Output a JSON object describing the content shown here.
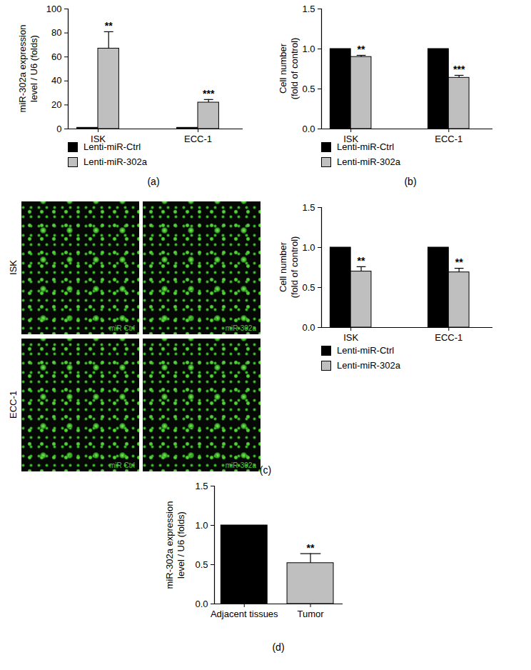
{
  "chart_data": [
    {
      "type": "bar",
      "title": "(a)",
      "y_label": [
        "miR-302a expression",
        "level / U6 (folds)"
      ],
      "categories": [
        "ISK",
        "ECC-1"
      ],
      "series": [
        {
          "name": "Lenti-miR-Ctrl",
          "color": "#000000",
          "values": [
            1,
            1
          ]
        },
        {
          "name": "Lenti-miR-302a",
          "color": "#bfbfbf",
          "values": [
            67,
            22
          ],
          "errors": [
            14,
            2.5
          ],
          "annotations": [
            "**",
            "***"
          ]
        }
      ],
      "ylim": [
        0,
        100
      ],
      "yticks": [
        0,
        20,
        40,
        60,
        80,
        100
      ],
      "legend": "bottom"
    },
    {
      "type": "bar",
      "title": "(b)",
      "y_label": [
        "Cell number",
        "(fold of control)"
      ],
      "categories": [
        "ISK",
        "ECC-1"
      ],
      "series": [
        {
          "name": "Lenti-miR-Ctrl",
          "color": "#000000",
          "values": [
            1,
            1
          ]
        },
        {
          "name": "Lenti-miR-302a",
          "color": "#bfbfbf",
          "values": [
            0.9,
            0.64
          ],
          "errors": [
            0.02,
            0.03
          ],
          "annotations": [
            "**",
            "***"
          ]
        }
      ],
      "ylim": [
        0,
        1.5
      ],
      "yticks": [
        {
          "value": 0,
          "label": "0.0"
        },
        {
          "value": 0.5,
          "label": "0.5"
        },
        {
          "value": 1,
          "label": "1.0"
        },
        {
          "value": 1.5,
          "label": "1.5"
        }
      ],
      "legend": "bottom"
    },
    {
      "type": "bar",
      "title": "(c)",
      "y_label": [
        "Cell number",
        "(fold of control)"
      ],
      "categories": [
        "ISK",
        "ECC-1"
      ],
      "series": [
        {
          "name": "Lenti-miR-Ctrl",
          "color": "#000000",
          "values": [
            1,
            1
          ]
        },
        {
          "name": "Lenti-miR-302a",
          "color": "#bfbfbf",
          "values": [
            0.7,
            0.69
          ],
          "errors": [
            0.06,
            0.05
          ],
          "annotations": [
            "**",
            "**"
          ]
        }
      ],
      "ylim": [
        0,
        1.5
      ],
      "yticks": [
        {
          "value": 0,
          "label": "0.0"
        },
        {
          "value": 0.5,
          "label": "0.5"
        },
        {
          "value": 1,
          "label": "1.0"
        },
        {
          "value": 1.5,
          "label": "1.5"
        }
      ],
      "legend": "bottom",
      "images": {
        "rows": [
          "ISK",
          "ECC-1"
        ],
        "labels": [
          "miR Ctrl",
          "miR-302a"
        ]
      }
    },
    {
      "type": "bar",
      "title": "(d)",
      "y_label": [
        "miR-302a expression",
        "level / U6 (folds)"
      ],
      "categories": [
        "Adjacent tissues",
        "Tumor"
      ],
      "values": [
        1,
        0.52
      ],
      "errors": [
        null,
        0.12
      ],
      "annotations": [
        null,
        "**"
      ],
      "colors": [
        "#000000",
        "#bfbfbf"
      ],
      "ylim": [
        0,
        1.5
      ],
      "yticks": [
        {
          "value": 0,
          "label": "0.0"
        },
        {
          "value": 0.5,
          "label": "0.5"
        },
        {
          "value": 1,
          "label": "1.0"
        },
        {
          "value": 1.5,
          "label": "1.5"
        }
      ]
    }
  ]
}
